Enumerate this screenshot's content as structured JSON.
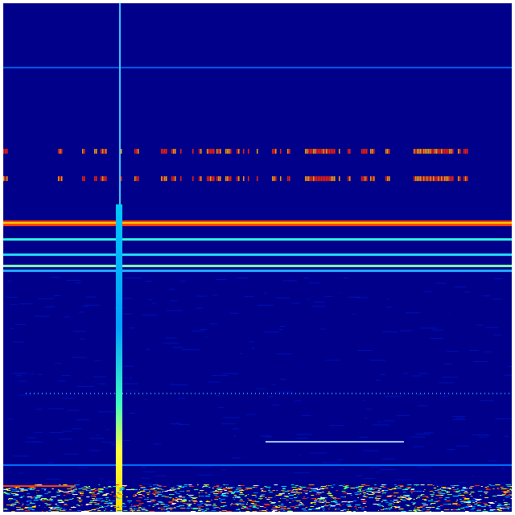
{
  "spectrogram": {
    "colormap": "jet",
    "colors": {
      "background": "#00008a",
      "low": "#0040ff",
      "mid": "#00e0ff",
      "high": "#ffff00",
      "peak": "#ff2000"
    }
  }
}
